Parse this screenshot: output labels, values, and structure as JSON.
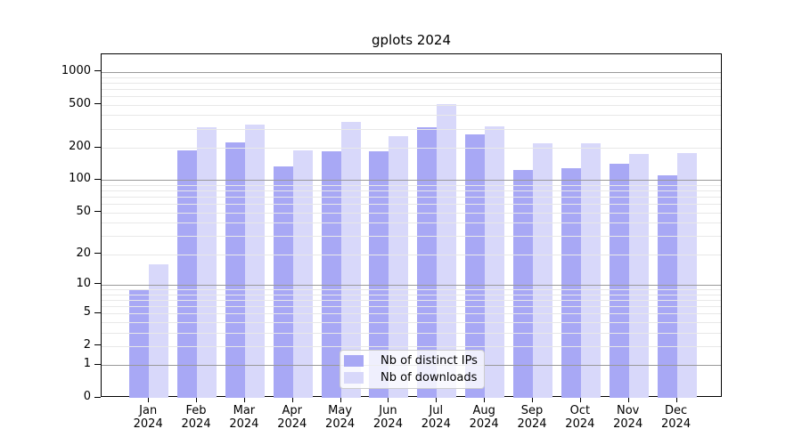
{
  "chart_data": {
    "type": "bar",
    "title": "gplots 2024",
    "y_scale": "log10(value+1)",
    "categories": [
      "Jan",
      "Feb",
      "Mar",
      "Apr",
      "May",
      "Jun",
      "Jul",
      "Aug",
      "Sep",
      "Oct",
      "Nov",
      "Dec"
    ],
    "x_year": "2024",
    "series": [
      {
        "name": "Nb of distinct IPs",
        "color": "#a8a8f5",
        "values": [
          9,
          190,
          225,
          133,
          185,
          187,
          312,
          266,
          124,
          130,
          143,
          110
        ]
      },
      {
        "name": "Nb of downloads",
        "color": "#d8d8fa",
        "values": [
          16,
          310,
          330,
          190,
          345,
          255,
          510,
          318,
          218,
          220,
          175,
          178
        ]
      }
    ],
    "y_ticks": [
      0,
      1,
      2,
      5,
      10,
      20,
      50,
      100,
      200,
      500,
      1000
    ],
    "ylim": [
      0,
      1450
    ],
    "grid": {
      "on": true,
      "major_values": [
        1,
        10,
        100,
        1000
      ],
      "minor_color": "#e8e8e8",
      "major_color": "#999999"
    },
    "legend_position": "bottom-center-inside"
  },
  "colors": {
    "background": "#ffffff",
    "axis": "#000000",
    "bar_distinct_ips": "#a8a8f5",
    "bar_downloads": "#d8d8fa"
  }
}
